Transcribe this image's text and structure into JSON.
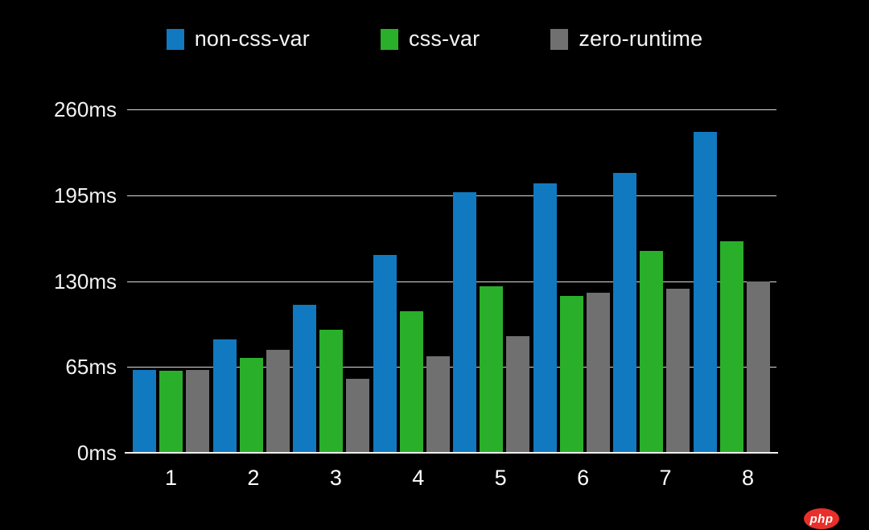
{
  "chart_data": {
    "type": "bar",
    "title": "",
    "categories": [
      "1",
      "2",
      "3",
      "4",
      "5",
      "6",
      "7",
      "8"
    ],
    "series": [
      {
        "name": "non-css-var",
        "color": "#1079c0",
        "values": [
          63,
          86,
          112,
          150,
          197,
          204,
          212,
          243
        ]
      },
      {
        "name": "css-var",
        "color": "#2aaf2a",
        "values": [
          62,
          72,
          93,
          107,
          126,
          119,
          153,
          160
        ]
      },
      {
        "name": "zero-runtime",
        "color": "#707070",
        "values": [
          63,
          78,
          56,
          73,
          88,
          121,
          124,
          130
        ]
      }
    ],
    "unit": "ms",
    "ylim": [
      0,
      260
    ],
    "y_ticks": [
      {
        "value": 260,
        "label": "260ms"
      },
      {
        "value": 195,
        "label": "195ms"
      },
      {
        "value": 130,
        "label": "130ms"
      },
      {
        "value": 65,
        "label": "65ms"
      },
      {
        "value": 0,
        "label": "0ms"
      }
    ],
    "grid": true,
    "legend_position": "top",
    "background": "#000000",
    "gridline_color": "#d9d9d9",
    "text_color": "#f2f2f2"
  },
  "watermark": {
    "text": "php",
    "background": "#e8302a",
    "text_color": "#ffffff"
  }
}
